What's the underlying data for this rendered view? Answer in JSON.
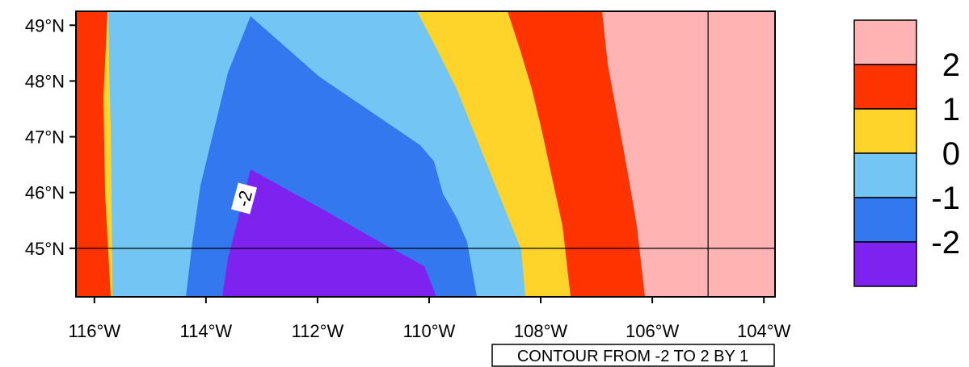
{
  "map": {
    "lon_ticks": [
      {
        "lon": -116,
        "label": "116°W"
      },
      {
        "lon": -114,
        "label": "114°W"
      },
      {
        "lon": -112,
        "label": "112°W"
      },
      {
        "lon": -110,
        "label": "110°W"
      },
      {
        "lon": -108,
        "label": "108°W"
      },
      {
        "lon": -106,
        "label": "106°W"
      },
      {
        "lon": -104,
        "label": "104°W"
      }
    ],
    "lat_ticks": [
      {
        "lat": 49,
        "label": "49°N"
      },
      {
        "lat": 48,
        "label": "48°N"
      },
      {
        "lat": 47,
        "label": "47°N"
      },
      {
        "lat": 46,
        "label": "46°N"
      },
      {
        "lat": 45,
        "label": "45°N"
      }
    ],
    "lon_range": [
      -116.33,
      -103.8
    ],
    "lat_range": [
      44.13,
      49.25
    ],
    "reference_lines": {
      "lon": -105,
      "lat": 45
    },
    "contour_label": "-2",
    "info_label": "CONTOUR FROM -2 TO 2 BY 1"
  },
  "legend": {
    "levels": [
      {
        "label": "2",
        "color": "#FFB3B3"
      },
      {
        "label": "1",
        "color": "#FF3300"
      },
      {
        "label": "0",
        "color": "#FFD42A"
      },
      {
        "label": "-1",
        "color": "#73C6F4"
      },
      {
        "label": "-2",
        "color": "#3378EE"
      },
      {
        "label": "",
        "color": "#7E22F0"
      }
    ]
  },
  "colors": {
    "level_gt_2": "#FFB3B3",
    "level_1_2": "#FF3300",
    "level_0_1": "#FFD42A",
    "level_m1_0": "#73C6F4",
    "level_m2_m1": "#3378EE",
    "level_lt_m2": "#7E22F0"
  }
}
